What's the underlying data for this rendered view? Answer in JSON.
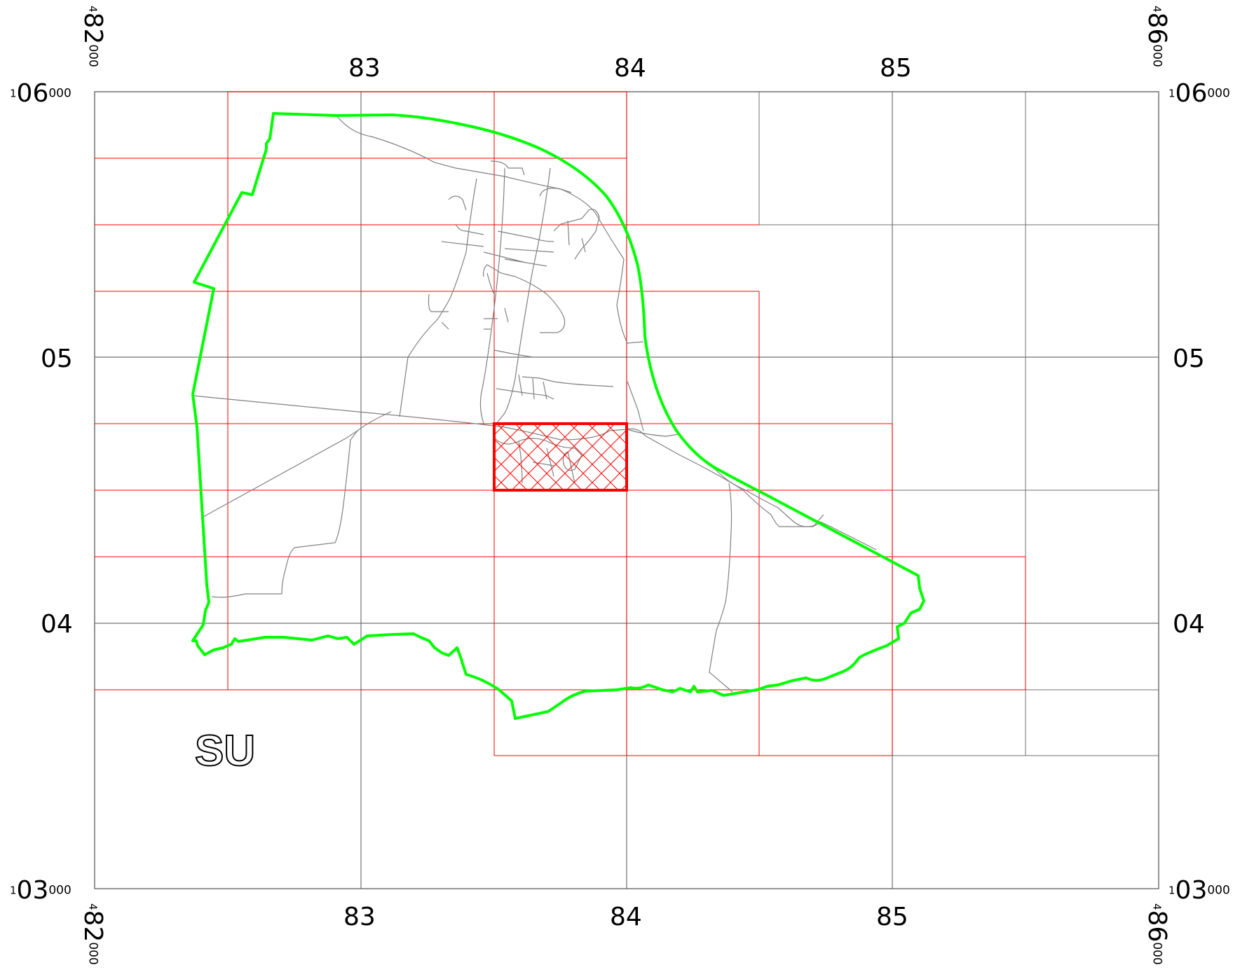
{
  "map": {
    "grid_letters": "SU",
    "top_ticks": [
      "83",
      "84",
      "85"
    ],
    "bottom_ticks": [
      "83",
      "84",
      "85"
    ],
    "side_ticks": [
      "05",
      "04"
    ],
    "corner_easting": {
      "prefix": "4",
      "main": "82",
      "suffix": "000"
    },
    "corner_easting_right": {
      "prefix": "4",
      "main": "86",
      "suffix": "000"
    },
    "corner_northing_top": {
      "prefix": "1",
      "main": "06",
      "suffix": "000"
    },
    "corner_northing_bottom": {
      "prefix": "1",
      "main": "03",
      "suffix": "000"
    },
    "colors": {
      "boundary": "#00ff00",
      "tile_grid": "#ff0000",
      "highlight": "#ff0000",
      "km_grid": "#707070",
      "roads": "#808080"
    }
  }
}
